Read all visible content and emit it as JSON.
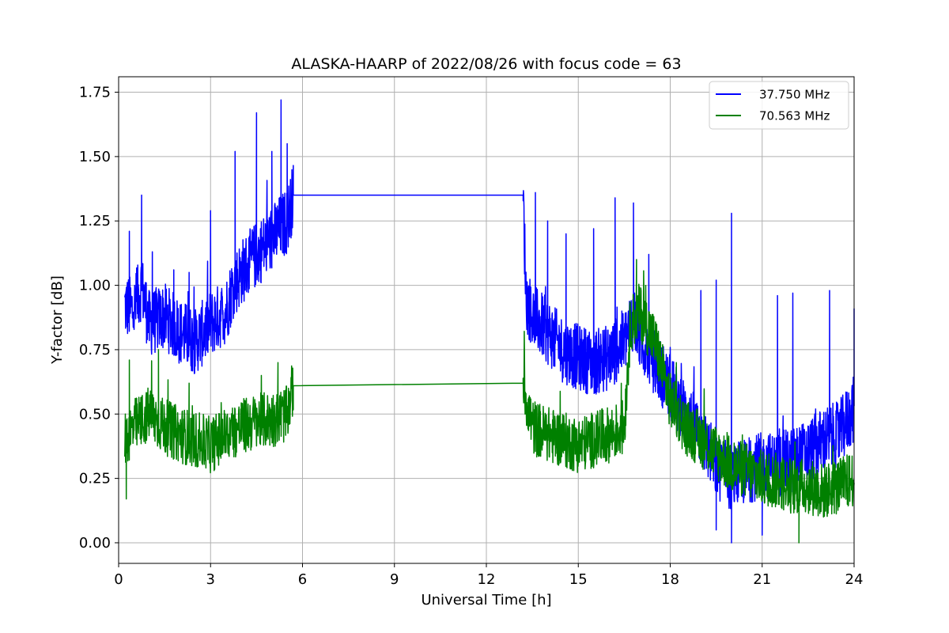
{
  "chart_data": {
    "type": "line",
    "title": "ALASKA-HAARP of 2022/08/26 with focus code = 63",
    "xlabel": "Universal Time [h]",
    "ylabel": "Y-factor [dB]",
    "xlim": [
      0,
      24
    ],
    "ylim": [
      -0.08,
      1.81
    ],
    "xticks": [
      0,
      3,
      6,
      9,
      12,
      15,
      18,
      21,
      24
    ],
    "xtick_labels": [
      "0",
      "3",
      "6",
      "9",
      "12",
      "15",
      "18",
      "21",
      "24"
    ],
    "yticks": [
      0.0,
      0.25,
      0.5,
      0.75,
      1.0,
      1.25,
      1.5,
      1.75
    ],
    "ytick_labels": [
      "0.00",
      "0.25",
      "0.50",
      "0.75",
      "1.00",
      "1.25",
      "1.50",
      "1.75"
    ],
    "grid": true,
    "legend_position": "top-right",
    "series": [
      {
        "name": "37.750 MHz",
        "color": "#0000ff",
        "x": [
          0.2,
          0.5,
          0.75,
          1.0,
          1.5,
          2.0,
          2.5,
          3.0,
          3.5,
          3.75,
          4.0,
          4.5,
          5.0,
          5.25,
          5.5,
          5.7,
          13.2,
          13.3,
          13.5,
          14.0,
          14.5,
          15.0,
          15.5,
          16.0,
          16.5,
          16.8,
          17.0,
          17.5,
          18.0,
          18.5,
          19.0,
          19.5,
          20.0,
          20.5,
          21.0,
          21.5,
          22.0,
          22.5,
          23.0,
          23.5,
          24.0
        ],
        "y": [
          0.92,
          0.9,
          1.0,
          0.85,
          0.88,
          0.82,
          0.78,
          0.85,
          0.9,
          1.0,
          1.05,
          1.12,
          1.18,
          1.22,
          1.25,
          1.35,
          1.35,
          0.95,
          0.88,
          0.82,
          0.75,
          0.72,
          0.7,
          0.72,
          0.78,
          0.88,
          0.8,
          0.7,
          0.6,
          0.5,
          0.42,
          0.3,
          0.25,
          0.28,
          0.3,
          0.3,
          0.32,
          0.35,
          0.4,
          0.42,
          0.52
        ],
        "spikes": [
          [
            0.35,
            1.21
          ],
          [
            0.75,
            1.35
          ],
          [
            1.1,
            1.13
          ],
          [
            1.8,
            1.06
          ],
          [
            2.3,
            1.05
          ],
          [
            3.0,
            1.29
          ],
          [
            3.8,
            1.52
          ],
          [
            4.5,
            1.67
          ],
          [
            5.0,
            1.52
          ],
          [
            5.3,
            1.72
          ],
          [
            5.5,
            1.55
          ],
          [
            13.6,
            1.36
          ],
          [
            14.0,
            1.25
          ],
          [
            14.6,
            1.2
          ],
          [
            15.5,
            1.22
          ],
          [
            16.2,
            1.34
          ],
          [
            16.8,
            1.32
          ],
          [
            17.3,
            1.12
          ],
          [
            19.0,
            0.98
          ],
          [
            19.5,
            1.02
          ],
          [
            20.0,
            1.28
          ],
          [
            21.5,
            0.96
          ],
          [
            22.0,
            0.97
          ],
          [
            23.2,
            0.98
          ],
          [
            24.0,
            0.91
          ]
        ],
        "min_values": [
          [
            20.0,
            0.0
          ],
          [
            21.0,
            0.03
          ],
          [
            19.5,
            0.05
          ]
        ]
      },
      {
        "name": "70.563 MHz",
        "color": "#008000",
        "x": [
          0.2,
          0.5,
          1.0,
          1.5,
          2.0,
          2.5,
          3.0,
          3.5,
          4.0,
          4.5,
          5.0,
          5.5,
          5.7,
          13.2,
          13.5,
          14.0,
          14.5,
          15.0,
          15.5,
          16.0,
          16.5,
          16.7,
          17.0,
          17.5,
          18.0,
          18.5,
          19.0,
          19.5,
          20.0,
          20.5,
          21.0,
          21.5,
          22.0,
          22.5,
          23.0,
          23.5,
          24.0
        ],
        "y": [
          0.4,
          0.45,
          0.5,
          0.45,
          0.42,
          0.4,
          0.38,
          0.42,
          0.45,
          0.47,
          0.48,
          0.5,
          0.61,
          0.62,
          0.45,
          0.42,
          0.4,
          0.38,
          0.4,
          0.42,
          0.45,
          0.85,
          0.9,
          0.78,
          0.55,
          0.45,
          0.4,
          0.35,
          0.3,
          0.28,
          0.25,
          0.24,
          0.22,
          0.22,
          0.2,
          0.22,
          0.25
        ],
        "spikes": [
          [
            0.35,
            0.71
          ],
          [
            1.3,
            0.75
          ],
          [
            2.3,
            0.62
          ],
          [
            5.2,
            0.7
          ],
          [
            16.9,
            1.1
          ],
          [
            17.2,
            1.0
          ],
          [
            18.2,
            0.7
          ]
        ],
        "min_values": [
          [
            0.25,
            0.17
          ],
          [
            22.2,
            0.0
          ],
          [
            23.0,
            0.1
          ]
        ]
      }
    ]
  }
}
